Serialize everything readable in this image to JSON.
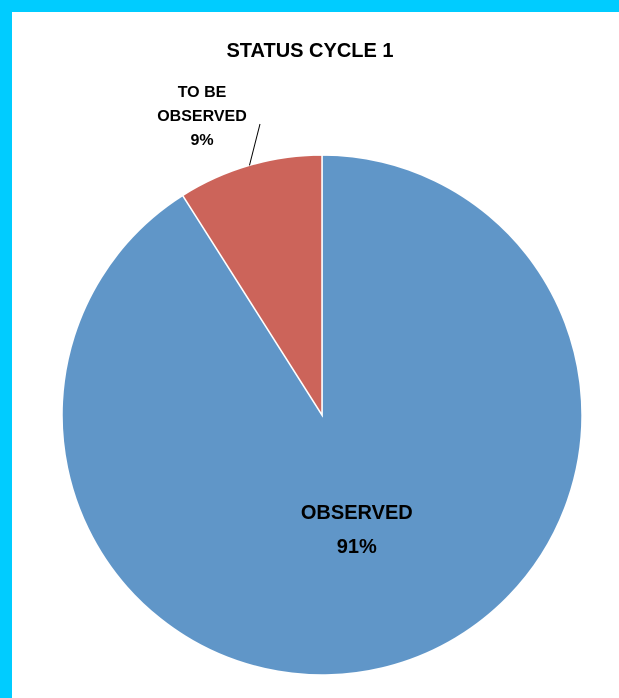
{
  "chart_data": {
    "type": "pie",
    "title": "STATUS CYCLE 1",
    "slices": [
      {
        "label": "OBSERVED",
        "label_lines": [
          "OBSERVED"
        ],
        "value": 91,
        "value_label": "91%",
        "color": "#6096c8"
      },
      {
        "label": "TO BE OBSERVED",
        "label_lines": [
          "TO BE",
          "OBSERVED"
        ],
        "value": 9,
        "value_label": "9%",
        "color": "#cc645a"
      }
    ],
    "legend": "none",
    "start_angle": "12 o'clock",
    "direction": "clockwise"
  }
}
